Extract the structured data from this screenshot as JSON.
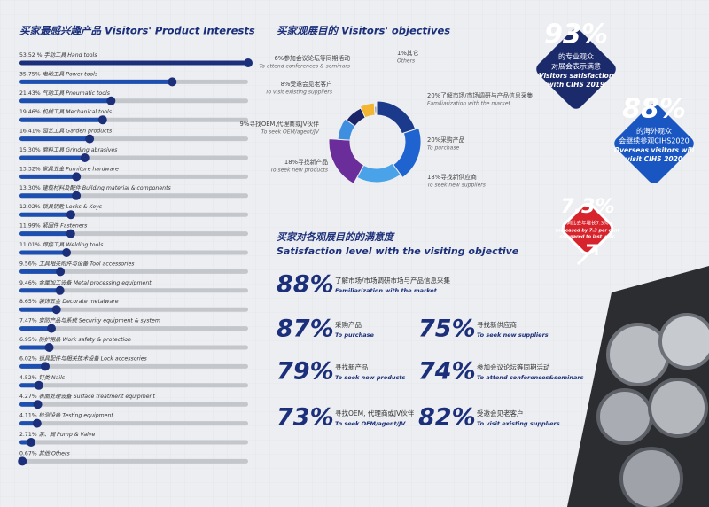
{
  "chart_data": [
    {
      "type": "bar",
      "title": "买家最感兴趣产品 Visitors' Product Interests",
      "categories": [
        "手动工具 Hand tools",
        "电动工具 Power tools",
        "气动工具 Pneumatic tools",
        "机械工具 Mechanical tools",
        "园艺工具 Garden products",
        "磨料工具 Grinding abrasives",
        "家具五金 Furniture hardware",
        "建筑材料及配件 Building material & components",
        "锁具钥匙 Locks & Keys",
        "紧固件 Fasteners",
        "焊接工具 Welding tools",
        "工具相关附件与设备 Tool accessories",
        "金属加工设备 Metal processing equipment",
        "装饰五金 Decorate metalware",
        "安防产品与系统 Security equipment & system",
        "防护用品 Work safety & protection",
        "锁具配件与相关技术设备 Lock accessories",
        "钉类 Nails",
        "表面处理设备 Surface treatment equipment",
        "检测设备 Testing equipment",
        "泵、阀 Pump & Valve",
        "其他 Others"
      ],
      "values": [
        53.52,
        35.75,
        21.43,
        19.46,
        16.41,
        15.3,
        13.32,
        13.3,
        12.02,
        11.99,
        11.01,
        9.56,
        9.46,
        8.65,
        7.47,
        6.95,
        6.02,
        4.52,
        4.27,
        4.11,
        2.71,
        0.67
      ],
      "value_labels": [
        "53.52 %",
        "35.75%",
        "21.43%",
        "19.46%",
        "16.41%",
        "15.30%",
        "13.32%",
        "13.30%",
        "12.02%",
        "11.99%",
        "11.01%",
        "9.56%",
        "9.46%",
        "8.65%",
        "7.47%",
        "6.95%",
        "6.02%",
        "4.52%",
        "4.27%",
        "4.11%",
        "2.71%",
        "0.67%"
      ],
      "color": "#1d4fb0"
    },
    {
      "type": "donut",
      "title": "买家观展目的 Visitors' objectives",
      "categories": [
        "了解市场/市场调研与产品信息采集",
        "采购产品",
        "寻找新供应商",
        "寻找新产品",
        "寻找OEM,代理商或JV伙伴",
        "受邀会见老客户",
        "参加会议论坛等同期活动",
        "其它"
      ],
      "labels_en": [
        "Familiarization with the market",
        "To purchase",
        "To seek new suppliers",
        "To seek new products",
        "To seek OEM/agent/JV",
        "To visit existing suppliers",
        "To attend conferences & seminars",
        "Others"
      ],
      "values": [
        20,
        20,
        18,
        18,
        9,
        8,
        6,
        1
      ],
      "value_labels": [
        "20%",
        "20%",
        "18%",
        "18%",
        "9%",
        "8%",
        "6%",
        "1%"
      ],
      "colors": [
        "#1b3a8c",
        "#1f63d0",
        "#4aa3e8",
        "#6a2d9a",
        "#3f8fe0",
        "#1a2466",
        "#f2b630",
        "#9aa0a8"
      ]
    }
  ],
  "satisfaction": {
    "title": "买家对各观展目的的满意度",
    "subtitle": "Satisfaction level with the visiting objective",
    "items": [
      {
        "value": "88%",
        "cn": "了解市场/市场调研市场与产品信息采集",
        "en": "Familiarization with the market"
      },
      {
        "value": "87%",
        "cn": "采购产品",
        "en": "To purchase"
      },
      {
        "value": "75%",
        "cn": "寻找新供应商",
        "en": "To seek new suppliers"
      },
      {
        "value": "79%",
        "cn": "寻找新产品",
        "en": "To seek new products"
      },
      {
        "value": "74%",
        "cn": "参加会议论坛等同期活动",
        "en": "To attend conferences&seminars"
      },
      {
        "value": "73%",
        "cn": "寻找OEM, 代理商或JV伙伴",
        "en": "To seek OEM/agent/JV"
      },
      {
        "value": "82%",
        "cn": "受邀会见老客户",
        "en": "To visit existing suppliers"
      }
    ]
  },
  "badges": [
    {
      "value": "93%",
      "cn": [
        "的专业观众",
        "对展会表示满意"
      ],
      "en": [
        "Visitors satisfaction",
        "with CIHS 2019"
      ]
    },
    {
      "value": "88%",
      "cn": [
        "的海外观众",
        "会继续参观CIHS2020"
      ],
      "en": [
        "Overseas visitors will",
        "visit CIHS 2020"
      ]
    },
    {
      "value": "7.3%",
      "cn": [
        "同比去年增长7.3%"
      ],
      "en": [
        "Increased by 7.3 per cent",
        "compared to last year."
      ]
    }
  ]
}
